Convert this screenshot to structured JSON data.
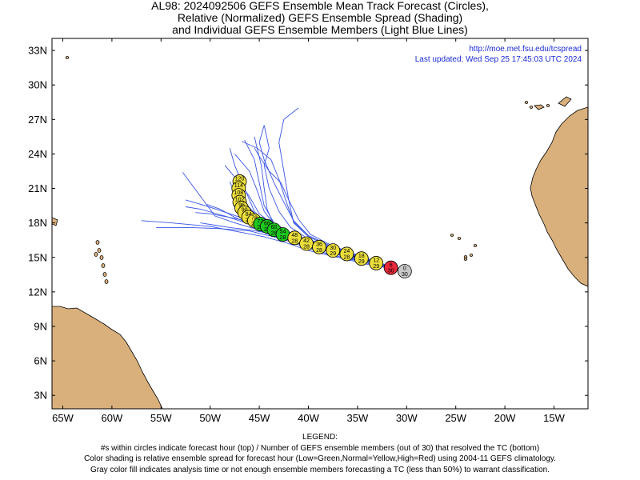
{
  "title": {
    "line1": "AL98: 2024092506 GEFS Ensemble Mean Track Forecast (Circles),",
    "line2": "Relative (Normalized) GEFS Ensemble Spread (Shading)",
    "line3": "and Individual GEFS Ensemble Members (Light Blue Lines)"
  },
  "credit": {
    "url": "http://moe.met.fsu.edu/tcspread",
    "updated": "Last updated: Wed Sep 25 17:45:03 UTC 2024"
  },
  "colors": {
    "land": "#d9b07c",
    "ocean": "#ffffff",
    "member_line": "#3a55e6",
    "gray": "#c8c8c8",
    "red": "#e8283a",
    "yellow": "#ecdf3c",
    "green": "#1ec81e",
    "credit_text": "#1a2bd6"
  },
  "axes": {
    "lon_labels": [
      {
        "lon": -65,
        "label": "65W"
      },
      {
        "lon": -60,
        "label": "60W"
      },
      {
        "lon": -55,
        "label": "55W"
      },
      {
        "lon": -50,
        "label": "50W"
      },
      {
        "lon": -45,
        "label": "45W"
      },
      {
        "lon": -40,
        "label": "40W"
      },
      {
        "lon": -35,
        "label": "35W"
      },
      {
        "lon": -30,
        "label": "30W"
      },
      {
        "lon": -25,
        "label": "25W"
      },
      {
        "lon": -20,
        "label": "20W"
      },
      {
        "lon": -15,
        "label": "15W"
      }
    ],
    "lat_labels": [
      {
        "lat": 33,
        "label": "33N"
      },
      {
        "lat": 30,
        "label": "30N"
      },
      {
        "lat": 27,
        "label": "27N"
      },
      {
        "lat": 24,
        "label": "24N"
      },
      {
        "lat": 21,
        "label": "21N"
      },
      {
        "lat": 18,
        "label": "18N"
      },
      {
        "lat": 15,
        "label": "15N"
      },
      {
        "lat": 12,
        "label": "12N"
      },
      {
        "lat": 9,
        "label": "9N"
      },
      {
        "lat": 6,
        "label": "6N"
      },
      {
        "lat": 3,
        "label": "3N"
      }
    ]
  },
  "track": [
    {
      "hour": "0",
      "members": "30",
      "lon": -30.2,
      "lat": 13.8,
      "spread": "gray"
    },
    {
      "hour": "6",
      "members": "30",
      "lon": -31.6,
      "lat": 14.1,
      "spread": "red"
    },
    {
      "hour": "12",
      "members": "29",
      "lon": -33.1,
      "lat": 14.5,
      "spread": "yellow"
    },
    {
      "hour": "18",
      "members": "29",
      "lon": -34.6,
      "lat": 14.9,
      "spread": "yellow"
    },
    {
      "hour": "24",
      "members": "28",
      "lon": -36.1,
      "lat": 15.3,
      "spread": "yellow"
    },
    {
      "hour": "30",
      "members": "29",
      "lon": -37.5,
      "lat": 15.6,
      "spread": "yellow"
    },
    {
      "hour": "36",
      "members": "28",
      "lon": -38.9,
      "lat": 15.9,
      "spread": "yellow"
    },
    {
      "hour": "42",
      "members": "28",
      "lon": -40.2,
      "lat": 16.2,
      "spread": "yellow"
    },
    {
      "hour": "48",
      "members": "28",
      "lon": -41.4,
      "lat": 16.7,
      "spread": "yellow"
    },
    {
      "hour": "54",
      "members": "28",
      "lon": -42.6,
      "lat": 17.0,
      "spread": "green"
    },
    {
      "hour": "60",
      "members": "28",
      "lon": -43.5,
      "lat": 17.4,
      "spread": "green"
    },
    {
      "hour": "66",
      "members": "28",
      "lon": -44.2,
      "lat": 17.7,
      "spread": "green"
    },
    {
      "hour": "72",
      "members": "28",
      "lon": -44.9,
      "lat": 17.9,
      "spread": "green"
    },
    {
      "hour": "78",
      "members": "28",
      "lon": -45.5,
      "lat": 18.2,
      "spread": "yellow"
    },
    {
      "hour": "84",
      "members": "28",
      "lon": -46.1,
      "lat": 18.5,
      "spread": "yellow"
    },
    {
      "hour": "90",
      "members": "28",
      "lon": -46.5,
      "lat": 18.9,
      "spread": "yellow"
    },
    {
      "hour": "96",
      "members": "28",
      "lon": -46.8,
      "lat": 19.3,
      "spread": "yellow"
    },
    {
      "hour": "102",
      "members": "28",
      "lon": -47.0,
      "lat": 19.8,
      "spread": "yellow"
    },
    {
      "hour": "108",
      "members": "28",
      "lon": -47.1,
      "lat": 20.4,
      "spread": "yellow"
    },
    {
      "hour": "114",
      "members": "28",
      "lon": -47.1,
      "lat": 21.0,
      "spread": "yellow"
    },
    {
      "hour": "120",
      "members": "28",
      "lon": -47.0,
      "lat": 21.6,
      "spread": "yellow"
    }
  ],
  "members": [
    [
      [
        -30.2,
        13.8
      ],
      [
        -32,
        14.2
      ],
      [
        -34,
        14.7
      ],
      [
        -36,
        15.2
      ],
      [
        -38,
        15.6
      ],
      [
        -40,
        16.1
      ],
      [
        -42,
        16.9
      ],
      [
        -43.5,
        17.6
      ],
      [
        -45,
        18.3
      ],
      [
        -46.5,
        19.3
      ],
      [
        -47.5,
        20.5
      ],
      [
        -48,
        21.6
      ]
    ],
    [
      [
        -30.2,
        13.8
      ],
      [
        -32,
        14.3
      ],
      [
        -34,
        14.9
      ],
      [
        -36,
        15.4
      ],
      [
        -38,
        15.9
      ],
      [
        -40,
        16.5
      ],
      [
        -42,
        17.2
      ],
      [
        -43.5,
        18
      ],
      [
        -44.5,
        19.5
      ],
      [
        -45,
        21.5
      ],
      [
        -45.5,
        23.5
      ],
      [
        -46.5,
        25.2
      ]
    ],
    [
      [
        -30.2,
        13.8
      ],
      [
        -32,
        14.1
      ],
      [
        -34,
        14.5
      ],
      [
        -36,
        14.9
      ],
      [
        -38,
        15.3
      ],
      [
        -40,
        15.8
      ],
      [
        -42,
        16.4
      ],
      [
        -44,
        16.9
      ],
      [
        -46,
        17.3
      ],
      [
        -49,
        17.5
      ],
      [
        -52,
        17.6
      ],
      [
        -55.5,
        17.6
      ]
    ],
    [
      [
        -30.2,
        13.8
      ],
      [
        -32,
        14.2
      ],
      [
        -34,
        14.8
      ],
      [
        -36,
        15.3
      ],
      [
        -38,
        15.8
      ],
      [
        -40,
        16.3
      ],
      [
        -42,
        17.1
      ],
      [
        -44,
        17.6
      ],
      [
        -46,
        18.2
      ],
      [
        -48,
        18.8
      ],
      [
        -50.5,
        19.5
      ],
      [
        -52.5,
        20
      ]
    ],
    [
      [
        -30.2,
        13.8
      ],
      [
        -32,
        14.3
      ],
      [
        -34,
        14.8
      ],
      [
        -36,
        15.4
      ],
      [
        -38,
        16
      ],
      [
        -40,
        16.8
      ],
      [
        -41.5,
        18
      ],
      [
        -42,
        20
      ],
      [
        -42.5,
        22.5
      ],
      [
        -43,
        25
      ],
      [
        -42.5,
        27
      ],
      [
        -41,
        28
      ]
    ],
    [
      [
        -30.2,
        13.8
      ],
      [
        -32,
        14.2
      ],
      [
        -34,
        14.6
      ],
      [
        -36,
        15.1
      ],
      [
        -38,
        15.6
      ],
      [
        -40,
        16.2
      ],
      [
        -42,
        16.9
      ],
      [
        -44,
        17.7
      ],
      [
        -45.5,
        19
      ],
      [
        -46.5,
        21
      ],
      [
        -47.5,
        23
      ],
      [
        -48,
        24.5
      ]
    ],
    [
      [
        -30.2,
        13.8
      ],
      [
        -32,
        14.1
      ],
      [
        -34,
        14.5
      ],
      [
        -36,
        15
      ],
      [
        -38,
        15.5
      ],
      [
        -40,
        16
      ],
      [
        -42,
        16.6
      ],
      [
        -44,
        17.3
      ],
      [
        -46,
        17.9
      ],
      [
        -48.5,
        18.6
      ],
      [
        -51,
        19.2
      ],
      [
        -52.5,
        19.4
      ]
    ],
    [
      [
        -30.2,
        13.8
      ],
      [
        -32,
        14.3
      ],
      [
        -34,
        14.9
      ],
      [
        -36,
        15.5
      ],
      [
        -38,
        16.1
      ],
      [
        -40,
        16.9
      ],
      [
        -41.5,
        18.2
      ],
      [
        -42.5,
        19.8
      ],
      [
        -43.5,
        21.5
      ],
      [
        -44.5,
        23.5
      ],
      [
        -45,
        25
      ],
      [
        -44.5,
        26.5
      ]
    ],
    [
      [
        -30.2,
        13.8
      ],
      [
        -32,
        14.2
      ],
      [
        -34,
        14.7
      ],
      [
        -36,
        15.2
      ],
      [
        -38,
        15.7
      ],
      [
        -40,
        16.3
      ],
      [
        -42,
        17
      ],
      [
        -43.5,
        17.8
      ],
      [
        -45,
        18.8
      ],
      [
        -46,
        20.3
      ],
      [
        -47,
        21.5
      ],
      [
        -48.5,
        23
      ]
    ],
    [
      [
        -30.2,
        13.8
      ],
      [
        -32,
        14.1
      ],
      [
        -34,
        14.4
      ],
      [
        -36,
        14.8
      ],
      [
        -38,
        15.2
      ],
      [
        -40,
        15.6
      ],
      [
        -42,
        16.2
      ],
      [
        -44.5,
        16.8
      ],
      [
        -47,
        17.2
      ],
      [
        -50,
        17.7
      ],
      [
        -54,
        18
      ],
      [
        -57,
        18.2
      ]
    ],
    [
      [
        -30.2,
        13.8
      ],
      [
        -32,
        14.2
      ],
      [
        -34,
        14.7
      ],
      [
        -36,
        15.3
      ],
      [
        -38,
        15.9
      ],
      [
        -40,
        16.6
      ],
      [
        -41.8,
        17.6
      ],
      [
        -43,
        19
      ],
      [
        -44,
        21
      ],
      [
        -44.5,
        23
      ],
      [
        -44,
        24.5
      ],
      [
        -44.5,
        26.5
      ]
    ],
    [
      [
        -30.2,
        13.8
      ],
      [
        -32,
        14.2
      ],
      [
        -34,
        14.6
      ],
      [
        -36,
        15
      ],
      [
        -38,
        15.5
      ],
      [
        -40,
        16.1
      ],
      [
        -42,
        16.8
      ],
      [
        -44,
        17.4
      ],
      [
        -46,
        17.9
      ],
      [
        -47.5,
        18.5
      ],
      [
        -49,
        19.2
      ],
      [
        -50.3,
        19.6
      ]
    ],
    [
      [
        -30.2,
        13.8
      ],
      [
        -32,
        14.3
      ],
      [
        -34,
        14.8
      ],
      [
        -36,
        15.3
      ],
      [
        -38,
        15.8
      ],
      [
        -40,
        16.4
      ],
      [
        -42,
        17.1
      ],
      [
        -43.5,
        17.9
      ],
      [
        -44.5,
        19
      ],
      [
        -45.2,
        20.8
      ],
      [
        -46,
        22.5
      ],
      [
        -47.5,
        24
      ]
    ],
    [
      [
        -30.2,
        13.8
      ],
      [
        -32,
        14.2
      ],
      [
        -34,
        14.7
      ],
      [
        -36,
        15.1
      ],
      [
        -38,
        15.6
      ],
      [
        -40,
        16.2
      ],
      [
        -42,
        16.8
      ],
      [
        -43.8,
        17.5
      ],
      [
        -45.5,
        18
      ],
      [
        -47.5,
        18.4
      ],
      [
        -50,
        18.8
      ],
      [
        -51.5,
        18.9
      ]
    ],
    [
      [
        -30.2,
        13.8
      ],
      [
        -32,
        14.2
      ],
      [
        -34,
        14.8
      ],
      [
        -36,
        15.4
      ],
      [
        -38,
        16.1
      ],
      [
        -40,
        16.9
      ],
      [
        -41.5,
        18.1
      ],
      [
        -42.2,
        19.7
      ],
      [
        -43,
        21.8
      ],
      [
        -43.8,
        23.5
      ],
      [
        -45.2,
        24.5
      ],
      [
        -46.8,
        25.1
      ]
    ],
    [
      [
        -30.2,
        13.8
      ],
      [
        -32,
        14.2
      ],
      [
        -34,
        14.6
      ],
      [
        -36,
        15
      ],
      [
        -38,
        15.5
      ],
      [
        -40,
        16.1
      ],
      [
        -42,
        16.6
      ],
      [
        -44,
        17.1
      ],
      [
        -46,
        17.4
      ],
      [
        -48,
        17.6
      ],
      [
        -49.5,
        17.8
      ],
      [
        -51,
        18
      ]
    ],
    [
      [
        -30.2,
        13.8
      ],
      [
        -32,
        14.3
      ],
      [
        -34,
        14.9
      ],
      [
        -36,
        15.5
      ],
      [
        -38,
        16.2
      ],
      [
        -39.8,
        17
      ],
      [
        -41,
        18.3
      ],
      [
        -42,
        20
      ],
      [
        -42.8,
        21.5
      ],
      [
        -44,
        22.5
      ],
      [
        -45,
        23.8
      ],
      [
        -45.5,
        24.5
      ]
    ],
    [
      [
        -30.2,
        13.8
      ],
      [
        -32,
        14.2
      ],
      [
        -34,
        14.7
      ],
      [
        -36,
        15.2
      ],
      [
        -38,
        15.7
      ],
      [
        -40,
        16.2
      ],
      [
        -42,
        16.9
      ],
      [
        -43.5,
        17.6
      ],
      [
        -45,
        18.4
      ],
      [
        -46.5,
        19.8
      ],
      [
        -47.2,
        21
      ],
      [
        -47.5,
        22
      ]
    ],
    [
      [
        -30.2,
        13.8
      ],
      [
        -32,
        14.1
      ],
      [
        -34,
        14.5
      ],
      [
        -36,
        14.9
      ],
      [
        -38,
        15.3
      ],
      [
        -40,
        15.9
      ],
      [
        -42,
        16.5
      ],
      [
        -44,
        17
      ],
      [
        -45.5,
        17.5
      ],
      [
        -47.5,
        18
      ],
      [
        -49.5,
        18.6
      ],
      [
        -52.8,
        22.4
      ]
    ],
    [
      [
        -30.2,
        13.8
      ],
      [
        -32,
        14.2
      ],
      [
        -34,
        14.7
      ],
      [
        -36,
        15.2
      ],
      [
        -38,
        15.8
      ],
      [
        -40,
        16.4
      ],
      [
        -42,
        17
      ],
      [
        -43.5,
        17.8
      ],
      [
        -44.2,
        19.2
      ],
      [
        -44.5,
        21
      ],
      [
        -44.8,
        23
      ],
      [
        -45.5,
        25.5
      ]
    ]
  ]
}
